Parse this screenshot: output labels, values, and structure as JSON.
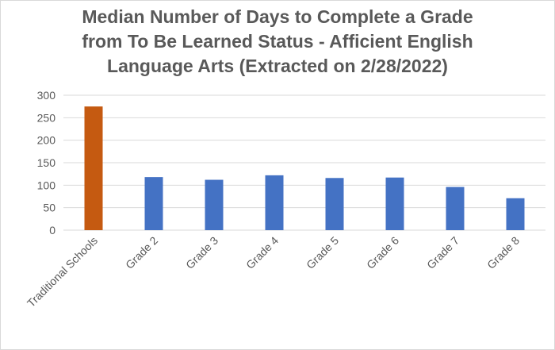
{
  "chart_data": {
    "type": "bar",
    "title_lines": [
      "Median Number of Days to Complete a Grade",
      "from To Be Learned Status - Afficient English",
      "Language Arts (Extracted on 2/28/2022)"
    ],
    "categories": [
      "Traditional Schools",
      "Grade 2",
      "Grade 3",
      "Grade 4",
      "Grade 5",
      "Grade 6",
      "Grade 7",
      "Grade 8"
    ],
    "values": [
      275,
      118,
      112,
      122,
      116,
      117,
      96,
      71
    ],
    "colors": [
      "#c55a11",
      "#4472c4",
      "#4472c4",
      "#4472c4",
      "#4472c4",
      "#4472c4",
      "#4472c4",
      "#4472c4"
    ],
    "ylim": [
      0,
      300
    ],
    "yticks": [
      0,
      50,
      100,
      150,
      200,
      250,
      300
    ],
    "grid": true,
    "legend": "none",
    "xlabel": "",
    "ylabel": ""
  }
}
